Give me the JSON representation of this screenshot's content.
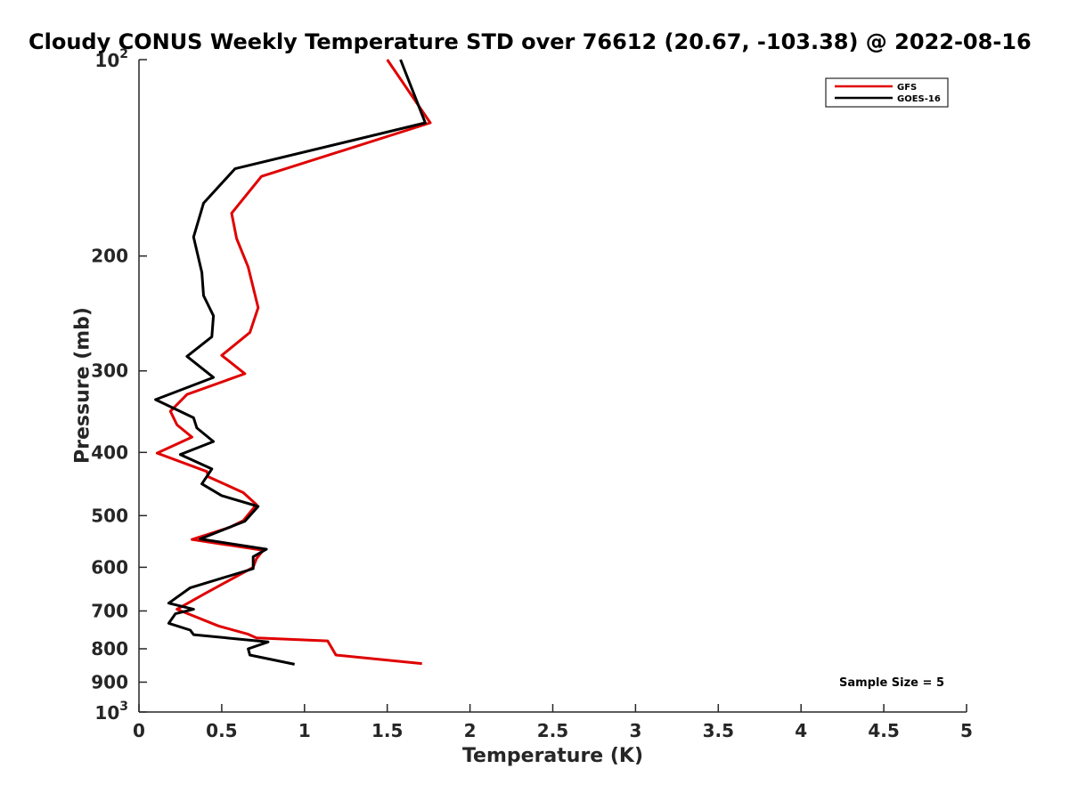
{
  "chart_data": {
    "type": "line",
    "title": "Cloudy CONUS Weekly Temperature STD over 76612 (20.67, -103.38) @ 2022-08-16",
    "xlabel": "Temperature (K)",
    "ylabel": "Pressure (mb)",
    "xlim": [
      0,
      5
    ],
    "ylim": [
      100,
      1000
    ],
    "y_scale": "log",
    "y_reversed": true,
    "grid": false,
    "legend_position": "top-right",
    "x_ticks": [
      {
        "value": 0,
        "label": "0"
      },
      {
        "value": 0.5,
        "label": "0.5"
      },
      {
        "value": 1,
        "label": "1"
      },
      {
        "value": 1.5,
        "label": "1.5"
      },
      {
        "value": 2,
        "label": "2"
      },
      {
        "value": 2.5,
        "label": "2.5"
      },
      {
        "value": 3,
        "label": "3"
      },
      {
        "value": 3.5,
        "label": "3.5"
      },
      {
        "value": 4,
        "label": "4"
      },
      {
        "value": 4.5,
        "label": "4.5"
      },
      {
        "value": 5,
        "label": "5"
      }
    ],
    "y_ticks": [
      {
        "value": 100,
        "base": "10",
        "exp": "2"
      },
      {
        "value": 200,
        "label": "200"
      },
      {
        "value": 300,
        "label": "300"
      },
      {
        "value": 400,
        "label": "400"
      },
      {
        "value": 500,
        "label": "500"
      },
      {
        "value": 600,
        "label": "600"
      },
      {
        "value": 700,
        "label": "700"
      },
      {
        "value": 800,
        "label": "800"
      },
      {
        "value": 900,
        "label": "900"
      },
      {
        "value": 1000,
        "base": "10",
        "exp": "3"
      }
    ],
    "series": [
      {
        "name": "GFS",
        "color": "#e00000",
        "points": [
          [
            1.5,
            100
          ],
          [
            1.76,
            125
          ],
          [
            0.74,
            151
          ],
          [
            0.56,
            172
          ],
          [
            0.59,
            188
          ],
          [
            0.66,
            208
          ],
          [
            0.72,
            240
          ],
          [
            0.67,
            262
          ],
          [
            0.5,
            284
          ],
          [
            0.64,
            303
          ],
          [
            0.29,
            326
          ],
          [
            0.19,
            346
          ],
          [
            0.23,
            363
          ],
          [
            0.32,
            379
          ],
          [
            0.11,
            401
          ],
          [
            0.41,
            428
          ],
          [
            0.42,
            436
          ],
          [
            0.63,
            461
          ],
          [
            0.71,
            481
          ],
          [
            0.63,
            509
          ],
          [
            0.55,
            521
          ],
          [
            0.32,
            544
          ],
          [
            0.75,
            565
          ],
          [
            0.71,
            582
          ],
          [
            0.69,
            600
          ],
          [
            0.4,
            658
          ],
          [
            0.23,
            696
          ],
          [
            0.48,
            738
          ],
          [
            0.66,
            760
          ],
          [
            0.71,
            770
          ],
          [
            1.14,
            778
          ],
          [
            1.19,
            818
          ],
          [
            1.71,
            843
          ]
        ]
      },
      {
        "name": "GOES-16",
        "color": "#000000",
        "points": [
          [
            1.58,
            100
          ],
          [
            1.73,
            125
          ],
          [
            0.58,
            147
          ],
          [
            0.39,
            166
          ],
          [
            0.33,
            187
          ],
          [
            0.38,
            212
          ],
          [
            0.39,
            230
          ],
          [
            0.45,
            247
          ],
          [
            0.44,
            266
          ],
          [
            0.29,
            285
          ],
          [
            0.45,
            307
          ],
          [
            0.1,
            332
          ],
          [
            0.33,
            354
          ],
          [
            0.35,
            367
          ],
          [
            0.45,
            385
          ],
          [
            0.25,
            403
          ],
          [
            0.44,
            424
          ],
          [
            0.38,
            447
          ],
          [
            0.5,
            466
          ],
          [
            0.72,
            484
          ],
          [
            0.64,
            510
          ],
          [
            0.37,
            543
          ],
          [
            0.77,
            563
          ],
          [
            0.69,
            578
          ],
          [
            0.69,
            603
          ],
          [
            0.31,
            645
          ],
          [
            0.18,
            681
          ],
          [
            0.33,
            696
          ],
          [
            0.22,
            707
          ],
          [
            0.18,
            731
          ],
          [
            0.31,
            749
          ],
          [
            0.33,
            761
          ],
          [
            0.78,
            781
          ],
          [
            0.66,
            800
          ],
          [
            0.67,
            818
          ],
          [
            0.94,
            845
          ]
        ]
      }
    ],
    "annotation": "Sample Size = 5"
  }
}
